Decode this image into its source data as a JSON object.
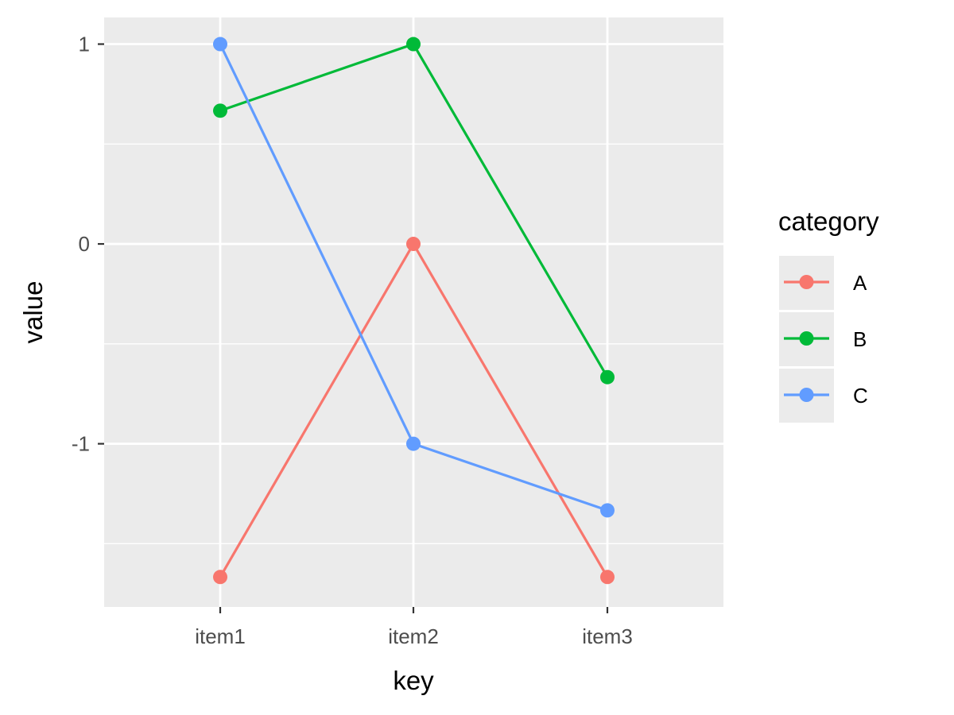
{
  "chart_data": {
    "type": "line",
    "xlabel": "key",
    "ylabel": "value",
    "categories": [
      "item1",
      "item2",
      "item3"
    ],
    "y_ticks": [
      -1,
      0,
      1
    ],
    "y_tick_labels": [
      "-1",
      "0",
      "1"
    ],
    "ylim": [
      -1.8167,
      1.1333
    ],
    "grid": true,
    "legend": {
      "title": "category",
      "placement": "right"
    },
    "series": [
      {
        "name": "A",
        "color": "#F8766D",
        "values": [
          -1.6667,
          0,
          -1.6667
        ]
      },
      {
        "name": "B",
        "color": "#00BA38",
        "values": [
          0.6667,
          1,
          -0.6667
        ]
      },
      {
        "name": "C",
        "color": "#619CFF",
        "values": [
          1,
          -1,
          -1.3333
        ]
      }
    ],
    "panel_background": "#EBEBEB",
    "gridline_color": "#FFFFFF"
  }
}
